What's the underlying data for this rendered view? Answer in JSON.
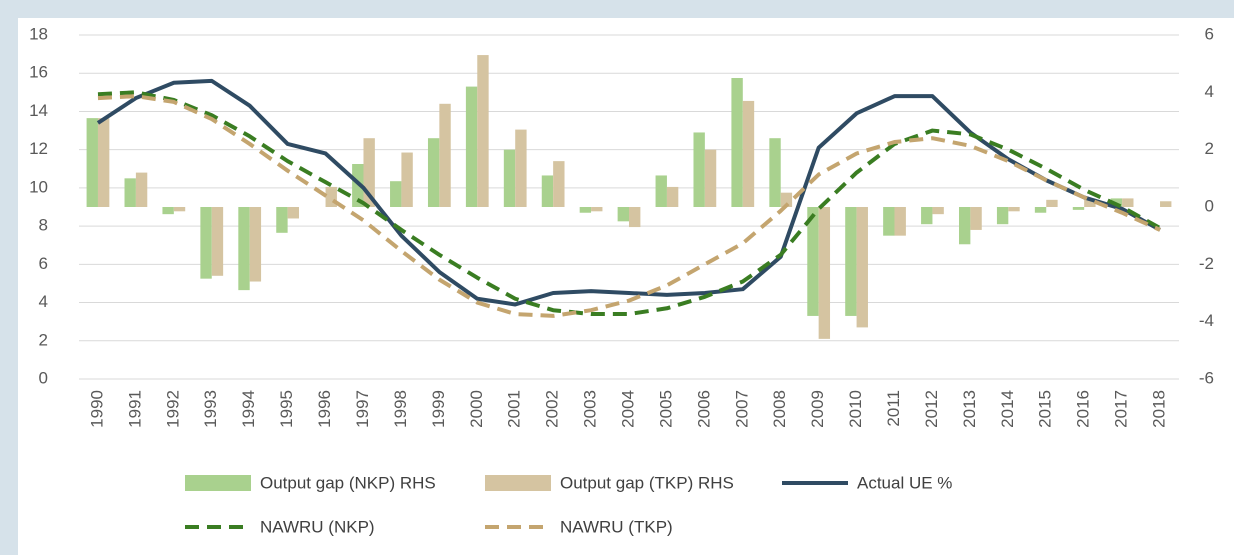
{
  "chart_data": {
    "type": "combo",
    "categories": [
      "1990",
      "1991",
      "1992",
      "1993",
      "1994",
      "1995",
      "1996",
      "1997",
      "1998",
      "1999",
      "2000",
      "2001",
      "2002",
      "2003",
      "2004",
      "2005",
      "2006",
      "2007",
      "2008",
      "2009",
      "2010",
      "2011",
      "2012",
      "2013",
      "2014",
      "2015",
      "2016",
      "2017",
      "2018"
    ],
    "series": [
      {
        "name": "Output gap (NKP) RHS",
        "type": "bar",
        "axis": "y2",
        "color": "#a9d18e",
        "values": [
          3.1,
          1.0,
          -0.25,
          -2.5,
          -2.9,
          -0.9,
          0.0,
          1.5,
          0.9,
          2.4,
          4.2,
          2.0,
          1.1,
          -0.2,
          -0.5,
          1.1,
          2.6,
          4.5,
          2.4,
          -3.8,
          -3.8,
          -1.0,
          -0.6,
          -1.3,
          -0.6,
          -0.2,
          -0.1,
          0.3,
          0.0
        ]
      },
      {
        "name": "Output gap (TKP) RHS",
        "type": "bar",
        "axis": "y2",
        "color": "#d5c4a1",
        "values": [
          3.1,
          1.2,
          -0.15,
          -2.4,
          -2.6,
          -0.4,
          0.7,
          2.4,
          1.9,
          3.6,
          5.3,
          2.7,
          1.6,
          -0.15,
          -0.7,
          0.7,
          2.0,
          3.7,
          0.5,
          -4.6,
          -4.2,
          -1.0,
          -0.25,
          -0.8,
          -0.15,
          0.25,
          0.3,
          0.3,
          0.2
        ]
      },
      {
        "name": "Actual UE %",
        "type": "line",
        "dashed": false,
        "color": "#2f4b63",
        "values": [
          13.4,
          14.7,
          15.5,
          15.6,
          14.3,
          12.3,
          11.8,
          10.0,
          7.5,
          5.6,
          4.2,
          3.9,
          4.5,
          4.6,
          4.5,
          4.4,
          4.5,
          4.7,
          6.4,
          12.1,
          13.9,
          14.8,
          14.8,
          12.9,
          11.5,
          10.4,
          9.5,
          8.9,
          7.8
        ]
      },
      {
        "name": "NAWRU (NKP)",
        "type": "line",
        "dashed": true,
        "color": "#3a7d22",
        "values": [
          14.9,
          15.0,
          14.6,
          13.8,
          12.7,
          11.4,
          10.3,
          9.2,
          7.8,
          6.5,
          5.3,
          4.2,
          3.6,
          3.4,
          3.4,
          3.7,
          4.3,
          5.1,
          6.5,
          8.9,
          10.8,
          12.3,
          13.0,
          12.8,
          12.0,
          11.0,
          9.9,
          9.0,
          7.9
        ]
      },
      {
        "name": "NAWRU (TKP)",
        "type": "line",
        "dashed": true,
        "color": "#c4a56f",
        "values": [
          14.7,
          14.8,
          14.5,
          13.6,
          12.3,
          10.9,
          9.6,
          8.3,
          6.7,
          5.2,
          4.0,
          3.4,
          3.3,
          3.6,
          4.1,
          4.9,
          6.0,
          7.1,
          8.8,
          10.7,
          11.8,
          12.4,
          12.6,
          12.2,
          11.4,
          10.4,
          9.5,
          8.7,
          7.8
        ]
      }
    ],
    "ylim": [
      0,
      18
    ],
    "yticks": [
      0,
      2,
      4,
      6,
      8,
      10,
      12,
      14,
      16,
      18
    ],
    "y2lim": [
      -6,
      6
    ],
    "y2ticks": [
      -6,
      -4,
      -2,
      0,
      2,
      4,
      6
    ],
    "grid": true
  }
}
